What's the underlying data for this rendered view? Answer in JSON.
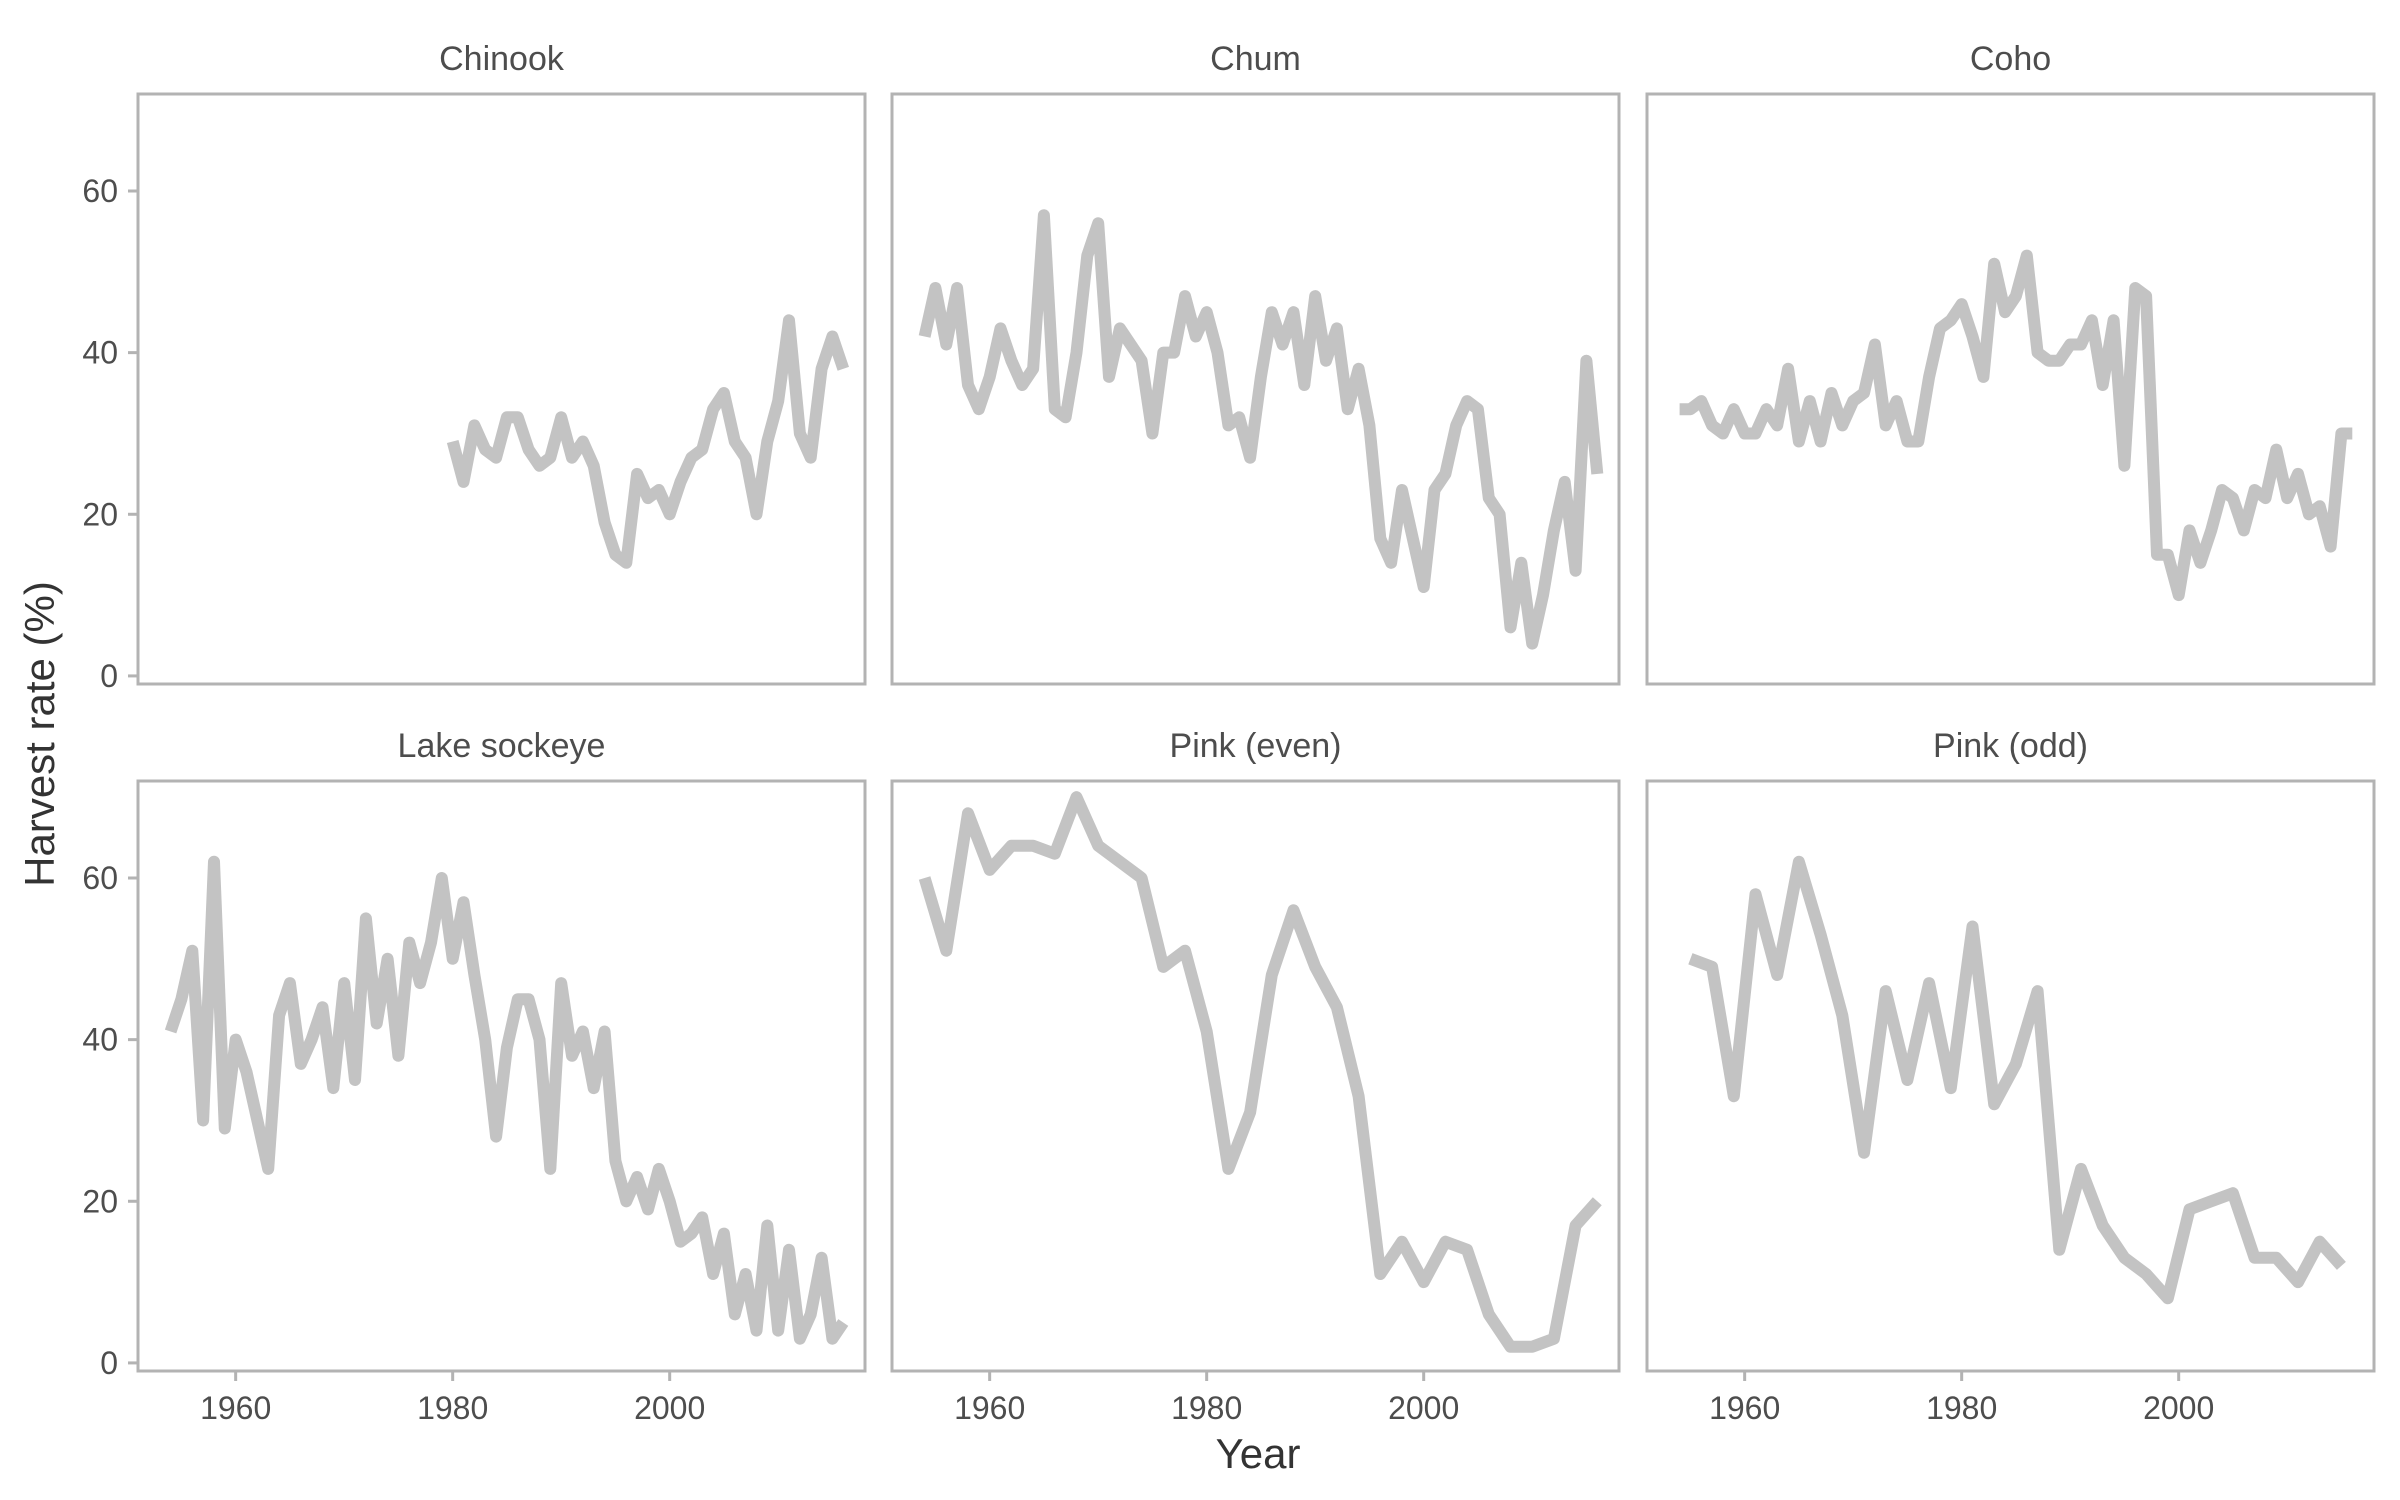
{
  "colors": {
    "line": "#c3c3c3",
    "frame": "#b3b3b3",
    "text": "#4d4d4d"
  },
  "labels": {
    "xlabel": "Year",
    "ylabel": "Harvest rate (%)"
  },
  "chart_data": {
    "type": "line",
    "layout": "facet-grid-2x3",
    "xlabel": "Year",
    "ylabel": "Harvest rate (%)",
    "xlim": [
      1951,
      2018
    ],
    "ylim": [
      -1,
      72
    ],
    "xticks": [
      1960,
      1980,
      2000
    ],
    "yticks": [
      0,
      20,
      40,
      60
    ],
    "grid": false,
    "panels": [
      {
        "title": "Chinook",
        "x": [
          1980,
          1981,
          1982,
          1983,
          1984,
          1985,
          1986,
          1987,
          1988,
          1989,
          1990,
          1991,
          1992,
          1993,
          1994,
          1995,
          1996,
          1997,
          1998,
          1999,
          2000,
          2001,
          2002,
          2003,
          2004,
          2005,
          2006,
          2007,
          2008,
          2009,
          2010,
          2011,
          2012,
          2013,
          2014,
          2015,
          2016
        ],
        "y": [
          29,
          24,
          31,
          28,
          27,
          32,
          32,
          28,
          26,
          27,
          32,
          27,
          29,
          26,
          19,
          15,
          14,
          25,
          22,
          23,
          20,
          24,
          27,
          28,
          33,
          35,
          29,
          27,
          20,
          29,
          34,
          44,
          30,
          27,
          38,
          42,
          38
        ]
      },
      {
        "title": "Chum",
        "x": [
          1954,
          1955,
          1956,
          1957,
          1958,
          1959,
          1960,
          1961,
          1962,
          1963,
          1964,
          1965,
          1966,
          1967,
          1968,
          1969,
          1970,
          1971,
          1972,
          1973,
          1974,
          1975,
          1976,
          1977,
          1978,
          1979,
          1980,
          1981,
          1982,
          1983,
          1984,
          1985,
          1986,
          1987,
          1988,
          1989,
          1990,
          1991,
          1992,
          1993,
          1994,
          1995,
          1996,
          1997,
          1998,
          1999,
          2000,
          2001,
          2002,
          2003,
          2004,
          2005,
          2006,
          2007,
          2008,
          2009,
          2010,
          2011,
          2012,
          2013,
          2014,
          2015,
          2016
        ],
        "y": [
          42,
          48,
          41,
          48,
          36,
          33,
          37,
          43,
          39,
          36,
          38,
          57,
          33,
          32,
          40,
          52,
          56,
          37,
          43,
          41,
          39,
          30,
          40,
          40,
          47,
          42,
          45,
          40,
          31,
          32,
          27,
          37,
          45,
          41,
          45,
          36,
          47,
          39,
          43,
          33,
          38,
          31,
          17,
          14,
          23,
          17,
          11,
          23,
          25,
          31,
          34,
          33,
          22,
          20,
          6,
          14,
          4,
          10,
          18,
          24,
          13,
          39,
          25
        ]
      },
      {
        "title": "Coho",
        "x": [
          1954,
          1955,
          1956,
          1957,
          1958,
          1959,
          1960,
          1961,
          1962,
          1963,
          1964,
          1965,
          1966,
          1967,
          1968,
          1969,
          1970,
          1971,
          1972,
          1973,
          1974,
          1975,
          1976,
          1977,
          1978,
          1979,
          1980,
          1981,
          1982,
          1983,
          1984,
          1985,
          1986,
          1987,
          1988,
          1989,
          1990,
          1991,
          1992,
          1993,
          1994,
          1995,
          1996,
          1997,
          1998,
          1999,
          2000,
          2001,
          2002,
          2003,
          2004,
          2005,
          2006,
          2007,
          2008,
          2009,
          2010,
          2011,
          2012,
          2013,
          2014,
          2015,
          2016
        ],
        "y": [
          33,
          33,
          34,
          31,
          30,
          33,
          30,
          30,
          33,
          31,
          38,
          29,
          34,
          29,
          35,
          31,
          34,
          35,
          41,
          31,
          34,
          29,
          29,
          37,
          43,
          44,
          46,
          42,
          37,
          51,
          45,
          47,
          52,
          40,
          39,
          39,
          41,
          41,
          44,
          36,
          44,
          26,
          48,
          47,
          15,
          15,
          10,
          18,
          14,
          18,
          23,
          22,
          18,
          23,
          22,
          28,
          22,
          25,
          20,
          21,
          16,
          30,
          30
        ]
      },
      {
        "title": "Lake sockeye",
        "x": [
          1954,
          1955,
          1956,
          1957,
          1958,
          1959,
          1960,
          1961,
          1962,
          1963,
          1964,
          1965,
          1966,
          1967,
          1968,
          1969,
          1970,
          1971,
          1972,
          1973,
          1974,
          1975,
          1976,
          1977,
          1978,
          1979,
          1980,
          1981,
          1982,
          1983,
          1984,
          1985,
          1986,
          1987,
          1988,
          1989,
          1990,
          1991,
          1992,
          1993,
          1994,
          1995,
          1996,
          1997,
          1998,
          1999,
          2000,
          2001,
          2002,
          2003,
          2004,
          2005,
          2006,
          2007,
          2008,
          2009,
          2010,
          2011,
          2012,
          2013,
          2014,
          2015,
          2016
        ],
        "y": [
          41,
          45,
          51,
          30,
          62,
          29,
          40,
          36,
          30,
          24,
          43,
          47,
          37,
          40,
          44,
          34,
          47,
          35,
          55,
          42,
          50,
          38,
          52,
          47,
          52,
          60,
          50,
          57,
          48,
          40,
          28,
          39,
          45,
          45,
          40,
          24,
          47,
          38,
          41,
          34,
          41,
          25,
          20,
          23,
          19,
          24,
          20,
          15,
          16,
          18,
          11,
          16,
          6,
          11,
          4,
          17,
          4,
          14,
          3,
          6,
          13,
          3,
          5
        ]
      },
      {
        "title": "Pink (even)",
        "x": [
          1954,
          1956,
          1958,
          1960,
          1962,
          1964,
          1966,
          1968,
          1970,
          1972,
          1974,
          1976,
          1978,
          1980,
          1982,
          1984,
          1986,
          1988,
          1990,
          1992,
          1994,
          1996,
          1998,
          2000,
          2002,
          2004,
          2006,
          2008,
          2010,
          2012,
          2014,
          2016
        ],
        "y": [
          60,
          51,
          68,
          61,
          64,
          64,
          63,
          70,
          64,
          62,
          60,
          49,
          51,
          41,
          24,
          31,
          48,
          56,
          49,
          44,
          33,
          11,
          15,
          10,
          15,
          14,
          6,
          2,
          2,
          3,
          17,
          20
        ]
      },
      {
        "title": "Pink (odd)",
        "x": [
          1955,
          1957,
          1959,
          1961,
          1963,
          1965,
          1967,
          1969,
          1971,
          1973,
          1975,
          1977,
          1979,
          1981,
          1983,
          1985,
          1987,
          1989,
          1991,
          1993,
          1995,
          1997,
          1999,
          2001,
          2003,
          2005,
          2007,
          2009,
          2011,
          2013,
          2015
        ],
        "y": [
          50,
          49,
          33,
          58,
          48,
          62,
          53,
          43,
          26,
          46,
          35,
          47,
          34,
          54,
          32,
          37,
          46,
          14,
          24,
          17,
          13,
          11,
          8,
          19,
          20,
          21,
          13,
          13,
          10,
          15,
          12
        ]
      }
    ]
  }
}
